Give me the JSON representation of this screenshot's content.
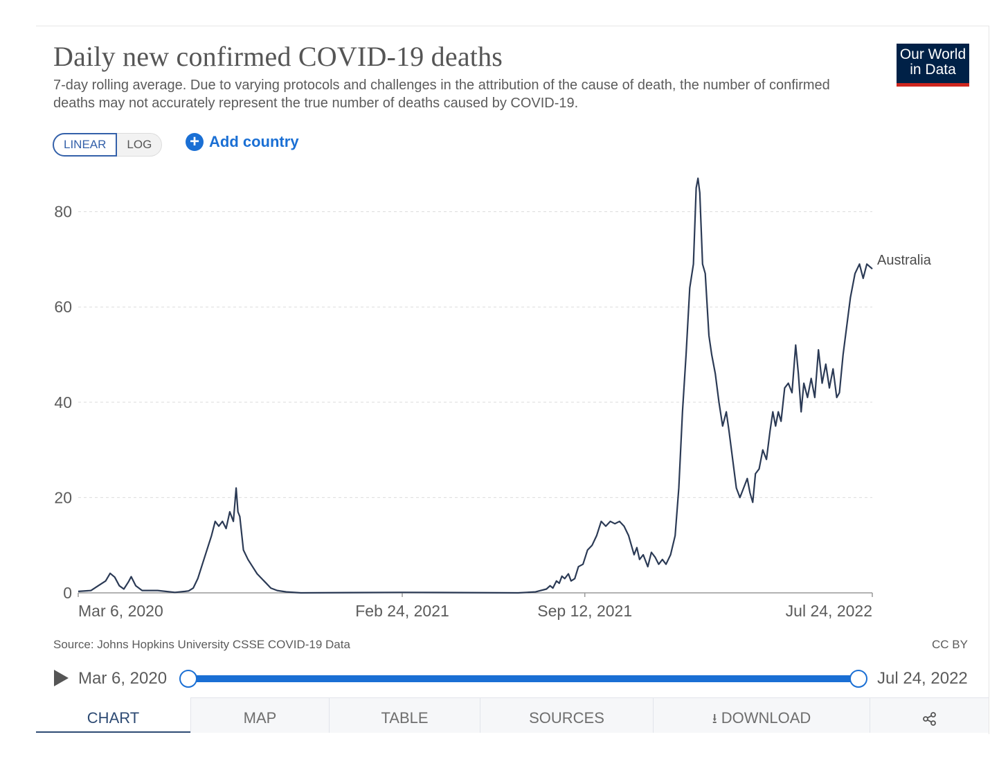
{
  "header": {
    "title": "Daily new confirmed COVID-19 deaths",
    "subtitle": "7-day rolling average. Due to varying protocols and challenges in the attribution of the cause of death, the number of confirmed deaths may not accurately represent the true number of deaths caused by COVID-19.",
    "logo_line1": "Our World",
    "logo_line2": "in Data"
  },
  "controls": {
    "linear_label": "LINEAR",
    "log_label": "LOG",
    "add_country_label": "Add country",
    "active_scale": "linear"
  },
  "footer": {
    "source": "Source: Johns Hopkins University CSSE COVID-19 Data",
    "license": "CC BY"
  },
  "timeline": {
    "start_label": "Mar 6, 2020",
    "end_label": "Jul 24, 2022",
    "selection_start": 0,
    "selection_end": 1
  },
  "tabs": [
    {
      "label": "CHART",
      "active": true
    },
    {
      "label": "MAP",
      "active": false
    },
    {
      "label": "TABLE",
      "active": false
    },
    {
      "label": "SOURCES",
      "active": false
    },
    {
      "label": "DOWNLOAD",
      "active": false,
      "icon": "download-icon"
    },
    {
      "label": "",
      "active": false,
      "icon": "share-icon"
    }
  ],
  "colors": {
    "line": "#2b3a55",
    "accent": "#1a6fd4",
    "logo_bg": "#002147",
    "logo_bar": "#ce261e"
  },
  "chart_data": {
    "type": "line",
    "title": "Daily new confirmed COVID-19 deaths",
    "ylim": [
      0,
      87
    ],
    "yticks": [
      0,
      20,
      40,
      60,
      80
    ],
    "xlim": [
      "2020-03-06",
      "2022-07-24"
    ],
    "xticks": [
      "Mar 6, 2020",
      "Feb 24, 2021",
      "Sep 12, 2021",
      "Jul 24, 2022"
    ],
    "xtick_dates": [
      "2020-03-06",
      "2021-02-24",
      "2021-09-12",
      "2022-07-24"
    ],
    "grid": true,
    "legend": "end-of-line label",
    "series": [
      {
        "name": "Australia",
        "points": [
          [
            "2020-03-06",
            0.3
          ],
          [
            "2020-03-20",
            0.5
          ],
          [
            "2020-03-28",
            1.5
          ],
          [
            "2020-04-05",
            2.5
          ],
          [
            "2020-04-10",
            4.1
          ],
          [
            "2020-04-15",
            3.3
          ],
          [
            "2020-04-20",
            1.5
          ],
          [
            "2020-04-25",
            0.8
          ],
          [
            "2020-04-30",
            2.3
          ],
          [
            "2020-05-03",
            3.4
          ],
          [
            "2020-05-08",
            1.5
          ],
          [
            "2020-05-15",
            0.5
          ],
          [
            "2020-06-01",
            0.5
          ],
          [
            "2020-06-20",
            0.1
          ],
          [
            "2020-07-01",
            0.3
          ],
          [
            "2020-07-05",
            0.4
          ],
          [
            "2020-07-10",
            1.0
          ],
          [
            "2020-07-15",
            3.0
          ],
          [
            "2020-07-20",
            6.0
          ],
          [
            "2020-07-25",
            9.0
          ],
          [
            "2020-07-30",
            12.0
          ],
          [
            "2020-08-03",
            15.0
          ],
          [
            "2020-08-07",
            14.0
          ],
          [
            "2020-08-11",
            15.0
          ],
          [
            "2020-08-15",
            13.5
          ],
          [
            "2020-08-19",
            17.0
          ],
          [
            "2020-08-23",
            15.0
          ],
          [
            "2020-08-26",
            22.0
          ],
          [
            "2020-08-28",
            17.0
          ],
          [
            "2020-08-30",
            16.0
          ],
          [
            "2020-09-03",
            9.0
          ],
          [
            "2020-09-08",
            7.0
          ],
          [
            "2020-09-13",
            5.5
          ],
          [
            "2020-09-18",
            4.0
          ],
          [
            "2020-09-23",
            3.0
          ],
          [
            "2020-09-28",
            2.0
          ],
          [
            "2020-10-03",
            1.0
          ],
          [
            "2020-10-10",
            0.5
          ],
          [
            "2020-10-20",
            0.2
          ],
          [
            "2020-11-05",
            0.0
          ],
          [
            "2021-02-24",
            0.1
          ],
          [
            "2021-07-01",
            0.0
          ],
          [
            "2021-07-20",
            0.2
          ],
          [
            "2021-08-01",
            0.8
          ],
          [
            "2021-08-05",
            1.5
          ],
          [
            "2021-08-08",
            1.0
          ],
          [
            "2021-08-12",
            2.5
          ],
          [
            "2021-08-15",
            2.0
          ],
          [
            "2021-08-18",
            3.5
          ],
          [
            "2021-08-21",
            3.0
          ],
          [
            "2021-08-25",
            4.0
          ],
          [
            "2021-08-28",
            2.5
          ],
          [
            "2021-09-01",
            3.0
          ],
          [
            "2021-09-05",
            5.5
          ],
          [
            "2021-09-10",
            6.0
          ],
          [
            "2021-09-15",
            9.0
          ],
          [
            "2021-09-20",
            10.0
          ],
          [
            "2021-09-25",
            12.0
          ],
          [
            "2021-09-30",
            15.0
          ],
          [
            "2021-10-05",
            14.0
          ],
          [
            "2021-10-10",
            15.0
          ],
          [
            "2021-10-15",
            14.5
          ],
          [
            "2021-10-20",
            15.0
          ],
          [
            "2021-10-25",
            14.0
          ],
          [
            "2021-10-30",
            12.0
          ],
          [
            "2021-11-05",
            8.0
          ],
          [
            "2021-11-08",
            9.5
          ],
          [
            "2021-11-11",
            7.0
          ],
          [
            "2021-11-15",
            8.0
          ],
          [
            "2021-11-20",
            5.5
          ],
          [
            "2021-11-24",
            8.5
          ],
          [
            "2021-11-28",
            7.5
          ],
          [
            "2021-12-02",
            6.0
          ],
          [
            "2021-12-06",
            7.0
          ],
          [
            "2021-12-10",
            6.0
          ],
          [
            "2021-12-15",
            8.0
          ],
          [
            "2021-12-20",
            12.0
          ],
          [
            "2021-12-24",
            22.0
          ],
          [
            "2021-12-28",
            38.0
          ],
          [
            "2022-01-01",
            50.0
          ],
          [
            "2022-01-05",
            64.0
          ],
          [
            "2022-01-09",
            69.0
          ],
          [
            "2022-01-12",
            85.0
          ],
          [
            "2022-01-14",
            87.0
          ],
          [
            "2022-01-16",
            84.0
          ],
          [
            "2022-01-19",
            69.0
          ],
          [
            "2022-01-22",
            67.0
          ],
          [
            "2022-01-26",
            54.0
          ],
          [
            "2022-01-29",
            50.0
          ],
          [
            "2022-02-02",
            46.0
          ],
          [
            "2022-02-06",
            40.0
          ],
          [
            "2022-02-10",
            35.0
          ],
          [
            "2022-02-14",
            38.0
          ],
          [
            "2022-02-17",
            34.0
          ],
          [
            "2022-02-21",
            28.0
          ],
          [
            "2022-02-25",
            22.0
          ],
          [
            "2022-03-01",
            20.0
          ],
          [
            "2022-03-05",
            22.0
          ],
          [
            "2022-03-09",
            24.0
          ],
          [
            "2022-03-12",
            21.0
          ],
          [
            "2022-03-15",
            19.0
          ],
          [
            "2022-03-18",
            25.0
          ],
          [
            "2022-03-22",
            26.0
          ],
          [
            "2022-03-26",
            30.0
          ],
          [
            "2022-03-30",
            28.0
          ],
          [
            "2022-04-03",
            34.0
          ],
          [
            "2022-04-06",
            38.0
          ],
          [
            "2022-04-09",
            35.0
          ],
          [
            "2022-04-12",
            38.0
          ],
          [
            "2022-04-15",
            36.0
          ],
          [
            "2022-04-19",
            43.0
          ],
          [
            "2022-04-23",
            44.0
          ],
          [
            "2022-04-27",
            42.0
          ],
          [
            "2022-05-01",
            52.0
          ],
          [
            "2022-05-04",
            46.0
          ],
          [
            "2022-05-07",
            38.0
          ],
          [
            "2022-05-10",
            44.0
          ],
          [
            "2022-05-14",
            41.0
          ],
          [
            "2022-05-18",
            45.0
          ],
          [
            "2022-05-22",
            41.0
          ],
          [
            "2022-05-26",
            51.0
          ],
          [
            "2022-05-30",
            44.0
          ],
          [
            "2022-06-03",
            48.0
          ],
          [
            "2022-06-07",
            43.0
          ],
          [
            "2022-06-11",
            47.0
          ],
          [
            "2022-06-15",
            41.0
          ],
          [
            "2022-06-18",
            42.0
          ],
          [
            "2022-06-22",
            50.0
          ],
          [
            "2022-06-26",
            56.0
          ],
          [
            "2022-06-30",
            62.0
          ],
          [
            "2022-07-05",
            67.0
          ],
          [
            "2022-07-10",
            69.0
          ],
          [
            "2022-07-14",
            66.0
          ],
          [
            "2022-07-18",
            69.0
          ],
          [
            "2022-07-24",
            68.0
          ]
        ]
      }
    ]
  }
}
